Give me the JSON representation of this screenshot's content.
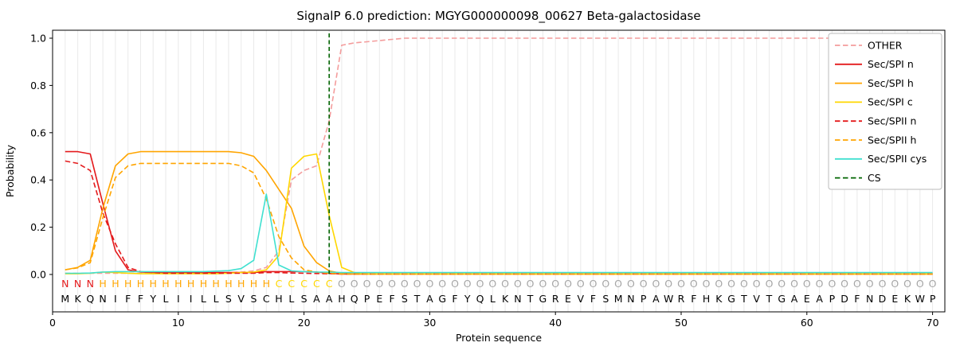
{
  "chart_data": {
    "type": "line",
    "title": "SignalP 6.0 prediction: MGYG000000098_00627 Beta-galactosidase",
    "xlabel": "Protein sequence",
    "ylabel": "Probability",
    "xlim": [
      0,
      71
    ],
    "ylim": [
      0,
      1.05
    ],
    "xticks": [
      0,
      10,
      20,
      30,
      40,
      50,
      60,
      70
    ],
    "yticks": [
      "0.0",
      "0.2",
      "0.4",
      "0.6",
      "0.8",
      "1.0"
    ],
    "grid": "vertical line at every residue position",
    "legend_position": "upper right",
    "sequence": "MKQNIFFYLIILLSVSCHLSAAHQPEFSTAGFYQLKNTGREVFSMNPAWRFHKGTVTGAEAPDFNDEKWP",
    "region_labels": "NNNHHHHHHHHHHHHHHCCCCCOOOOOOOOOOOOOOOOOOOOOOOOOOOOOOOOOOOOOOOOOOOOOOOO",
    "region_colors": {
      "N": "#e41a1c",
      "H": "#ffa500",
      "C": "#ffd700",
      "O": "#a6a6a6"
    },
    "cs": {
      "label": "CS",
      "position": 22,
      "color": "#006400",
      "dash": true
    },
    "series": [
      {
        "name": "OTHER",
        "color": "#f49c9c",
        "dash": true,
        "values": [
          0.005,
          0.005,
          0.005,
          0.005,
          0.005,
          0.005,
          0.005,
          0.005,
          0.005,
          0.005,
          0.005,
          0.005,
          0.005,
          0.008,
          0.01,
          0.015,
          0.03,
          0.1,
          0.4,
          0.44,
          0.46,
          0.65,
          0.97,
          0.98,
          0.985,
          0.99,
          0.995,
          1,
          1,
          1,
          1,
          1,
          1,
          1,
          1,
          1,
          1,
          1,
          1,
          1,
          1,
          1,
          1,
          1,
          1,
          1,
          1,
          1,
          1,
          1,
          1,
          1,
          1,
          1,
          1,
          1,
          1,
          1,
          1,
          1,
          1,
          1,
          1,
          1,
          1,
          1,
          1,
          1,
          1,
          1
        ]
      },
      {
        "name": "Sec/SPI n",
        "color": "#e41a1c",
        "dash": false,
        "values": [
          0.52,
          0.52,
          0.51,
          0.3,
          0.1,
          0.02,
          0.01,
          0.008,
          0.008,
          0.008,
          0.008,
          0.008,
          0.008,
          0.008,
          0.008,
          0.008,
          0.012,
          0.012,
          0.012,
          0.012,
          0.01,
          0.005,
          0.002,
          0.002,
          0.002,
          0.002,
          0.002,
          0.002,
          0.002,
          0.002,
          0.002,
          0.002,
          0.002,
          0.002,
          0.002,
          0.002,
          0.002,
          0.002,
          0.002,
          0.002,
          0.002,
          0.002,
          0.002,
          0.002,
          0.002,
          0.002,
          0.002,
          0.002,
          0.002,
          0.002,
          0.002,
          0.002,
          0.002,
          0.002,
          0.002,
          0.002,
          0.002,
          0.002,
          0.002,
          0.002,
          0.002,
          0.002,
          0.002,
          0.002,
          0.002,
          0.002,
          0.002,
          0.002,
          0.002,
          0.002
        ]
      },
      {
        "name": "Sec/SPI h",
        "color": "#ffa500",
        "dash": false,
        "values": [
          0.02,
          0.03,
          0.06,
          0.28,
          0.46,
          0.51,
          0.52,
          0.52,
          0.52,
          0.52,
          0.52,
          0.52,
          0.52,
          0.52,
          0.515,
          0.5,
          0.44,
          0.36,
          0.28,
          0.12,
          0.05,
          0.015,
          0.005,
          0.002,
          0.002,
          0.002,
          0.002,
          0.002,
          0.002,
          0.002,
          0.002,
          0.002,
          0.002,
          0.002,
          0.002,
          0.002,
          0.002,
          0.002,
          0.002,
          0.002,
          0.002,
          0.002,
          0.002,
          0.002,
          0.002,
          0.002,
          0.002,
          0.002,
          0.002,
          0.002,
          0.002,
          0.002,
          0.002,
          0.002,
          0.002,
          0.002,
          0.002,
          0.002,
          0.002,
          0.002,
          0.002,
          0.002,
          0.002,
          0.002,
          0.002,
          0.002,
          0.002,
          0.002,
          0.002,
          0.002
        ]
      },
      {
        "name": "Sec/SPI c",
        "color": "#ffd700",
        "dash": false,
        "values": [
          0.003,
          0.003,
          0.005,
          0.01,
          0.008,
          0.005,
          0.003,
          0.003,
          0.003,
          0.003,
          0.003,
          0.003,
          0.003,
          0.005,
          0.008,
          0.01,
          0.02,
          0.08,
          0.45,
          0.5,
          0.51,
          0.25,
          0.03,
          0.008,
          0.002,
          0.002,
          0.002,
          0.002,
          0.002,
          0.002,
          0.002,
          0.002,
          0.002,
          0.002,
          0.002,
          0.002,
          0.002,
          0.002,
          0.002,
          0.002,
          0.002,
          0.002,
          0.002,
          0.002,
          0.002,
          0.002,
          0.002,
          0.002,
          0.002,
          0.002,
          0.002,
          0.002,
          0.002,
          0.002,
          0.002,
          0.002,
          0.002,
          0.002,
          0.002,
          0.002,
          0.002,
          0.002,
          0.002,
          0.002,
          0.002,
          0.002,
          0.002,
          0.002,
          0.002,
          0.002
        ]
      },
      {
        "name": "Sec/SPII n",
        "color": "#e41a1c",
        "dash": true,
        "values": [
          0.48,
          0.47,
          0.44,
          0.26,
          0.13,
          0.03,
          0.012,
          0.008,
          0.005,
          0.005,
          0.005,
          0.005,
          0.005,
          0.005,
          0.005,
          0.005,
          0.008,
          0.008,
          0.006,
          0.005,
          0.004,
          0.003,
          0.002,
          0.002,
          0.002,
          0.002,
          0.002,
          0.002,
          0.002,
          0.002,
          0.002,
          0.002,
          0.002,
          0.002,
          0.002,
          0.002,
          0.002,
          0.002,
          0.002,
          0.002,
          0.002,
          0.002,
          0.002,
          0.002,
          0.002,
          0.002,
          0.002,
          0.002,
          0.002,
          0.002,
          0.002,
          0.002,
          0.002,
          0.002,
          0.002,
          0.002,
          0.002,
          0.002,
          0.002,
          0.002,
          0.002,
          0.002,
          0.002,
          0.002,
          0.002,
          0.002,
          0.002,
          0.002,
          0.002,
          0.002
        ]
      },
      {
        "name": "Sec/SPII h",
        "color": "#ffa500",
        "dash": true,
        "values": [
          0.02,
          0.028,
          0.05,
          0.24,
          0.41,
          0.46,
          0.47,
          0.47,
          0.47,
          0.47,
          0.47,
          0.47,
          0.47,
          0.47,
          0.46,
          0.43,
          0.32,
          0.16,
          0.07,
          0.02,
          0.01,
          0.005,
          0.002,
          0.002,
          0.002,
          0.002,
          0.002,
          0.002,
          0.002,
          0.002,
          0.002,
          0.002,
          0.002,
          0.002,
          0.002,
          0.002,
          0.002,
          0.002,
          0.002,
          0.002,
          0.002,
          0.002,
          0.002,
          0.002,
          0.002,
          0.002,
          0.002,
          0.002,
          0.002,
          0.002,
          0.002,
          0.002,
          0.002,
          0.002,
          0.002,
          0.002,
          0.002,
          0.002,
          0.002,
          0.002,
          0.002,
          0.002,
          0.002,
          0.002,
          0.002,
          0.002,
          0.002,
          0.002,
          0.002,
          0.002
        ]
      },
      {
        "name": "Sec/SPII cys",
        "color": "#40e0d0",
        "dash": false,
        "values": [
          0.005,
          0.005,
          0.006,
          0.01,
          0.012,
          0.012,
          0.012,
          0.012,
          0.012,
          0.012,
          0.012,
          0.012,
          0.014,
          0.016,
          0.025,
          0.06,
          0.34,
          0.04,
          0.015,
          0.012,
          0.01,
          0.01,
          0.008,
          0.008,
          0.008,
          0.008,
          0.008,
          0.008,
          0.008,
          0.008,
          0.008,
          0.008,
          0.008,
          0.008,
          0.008,
          0.008,
          0.008,
          0.008,
          0.008,
          0.008,
          0.008,
          0.008,
          0.008,
          0.008,
          0.008,
          0.008,
          0.008,
          0.008,
          0.008,
          0.008,
          0.008,
          0.008,
          0.008,
          0.008,
          0.008,
          0.008,
          0.008,
          0.008,
          0.008,
          0.008,
          0.008,
          0.008,
          0.008,
          0.008,
          0.008,
          0.008,
          0.008,
          0.008,
          0.008,
          0.008
        ]
      }
    ],
    "legend": [
      {
        "label": "OTHER",
        "color": "#f49c9c",
        "dash": true
      },
      {
        "label": "Sec/SPI n",
        "color": "#e41a1c",
        "dash": false
      },
      {
        "label": "Sec/SPI h",
        "color": "#ffa500",
        "dash": false
      },
      {
        "label": "Sec/SPI c",
        "color": "#ffd700",
        "dash": false
      },
      {
        "label": "Sec/SPII n",
        "color": "#e41a1c",
        "dash": true
      },
      {
        "label": "Sec/SPII h",
        "color": "#ffa500",
        "dash": true
      },
      {
        "label": "Sec/SPII cys",
        "color": "#40e0d0",
        "dash": false
      },
      {
        "label": "CS",
        "color": "#006400",
        "dash": true
      }
    ],
    "style": {
      "grid_color": "#eaeaea",
      "frame_color": "#000000",
      "sequence_color": "#000000",
      "background": "#ffffff",
      "legend_border": "#bbbbbb"
    }
  }
}
